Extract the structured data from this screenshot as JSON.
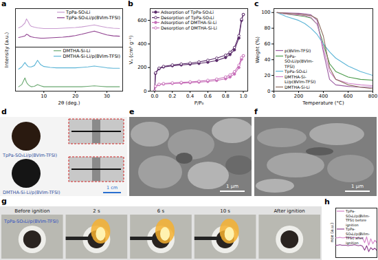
{
  "chart_data": [
    {
      "label": "a",
      "type": "line",
      "ylabel": "Intensity (a.u.)",
      "x": [
        2,
        3,
        4,
        4.5,
        5,
        5.5,
        6,
        7,
        8,
        9,
        10,
        12,
        14,
        16,
        18,
        20,
        22,
        24,
        26,
        28,
        30,
        32,
        34
      ],
      "xlim": [
        1,
        35
      ],
      "ylim": [
        0,
        12
      ],
      "tick_labels": false,
      "legend": "top-right",
      "series": [
        {
          "name": "TpPa-SO₃Li",
          "color": "#c99bd0",
          "values": [
            6,
            6.5,
            7.5,
            8.8,
            8,
            7,
            6.5,
            6.2,
            6,
            5.9,
            5.8,
            5.8,
            5.8,
            5.9,
            6,
            6.1,
            6.3,
            6.6,
            6.9,
            6.5,
            6.1,
            5.9,
            5.8
          ]
        },
        {
          "name": "TpPa-SO₃Li/p(BVIm-TFSI)",
          "color": "#8e3e8e",
          "values": [
            3,
            3.2,
            3.5,
            4,
            3.8,
            3.4,
            3.2,
            3,
            2.9,
            2.8,
            2.8,
            2.9,
            3,
            3.1,
            3.3,
            3.6,
            4,
            4.5,
            5,
            4.4,
            3.8,
            3.5,
            3.4
          ]
        }
      ]
    },
    {
      "type": "line",
      "xlabel": "2θ (deg.)",
      "x": [
        2,
        3,
        4,
        4.5,
        5,
        5.5,
        6,
        7,
        8,
        9,
        10,
        12,
        14,
        16,
        18,
        20,
        22,
        24,
        26,
        28,
        30,
        32,
        34
      ],
      "xlim": [
        1,
        35
      ],
      "xticks": [
        10,
        20,
        30
      ],
      "ylim": [
        0,
        10
      ],
      "tick_labels": "x",
      "legend": "top-right",
      "series": [
        {
          "name": "DMTHA-Si-Li",
          "color": "#6aa870",
          "values": [
            1,
            1.5,
            3,
            2,
            1.5,
            1.2,
            1,
            1.1,
            1.5,
            1.2,
            1,
            1,
            1,
            1,
            1,
            1,
            1,
            1.1,
            1.2,
            1.1,
            1,
            1,
            1
          ]
        },
        {
          "name": "DMTHA-Si-Li/p(BVIm-TFSI)",
          "color": "#5ab4d6",
          "values": [
            5,
            5.5,
            6.5,
            6,
            5.6,
            5.5,
            5.5,
            5.8,
            7,
            6,
            5.6,
            5.4,
            5.3,
            5.3,
            5.3,
            5.3,
            5.4,
            5.5,
            5.7,
            5.5,
            5.3,
            5.2,
            5.2
          ]
        }
      ]
    },
    {
      "label": "b",
      "type": "line",
      "xlabel": "P/P₀",
      "ylabel": "Vₐ (cm³ g⁻¹)",
      "x": [
        0,
        0.01,
        0.05,
        0.1,
        0.2,
        0.3,
        0.4,
        0.5,
        0.6,
        0.7,
        0.8,
        0.85,
        0.9,
        0.95,
        0.98,
        1.0
      ],
      "xlim": [
        -0.05,
        1.05
      ],
      "xticks": [
        {
          "value": 0,
          "label": "0.0"
        },
        {
          "value": 0.2,
          "label": "0.2"
        },
        {
          "value": 0.4,
          "label": "0.4"
        },
        {
          "value": 0.6,
          "label": "0.6"
        },
        {
          "value": 0.8,
          "label": "0.8"
        },
        {
          "value": 1,
          "label": "1.0"
        }
      ],
      "ylim": [
        0,
        700
      ],
      "yticks": [
        0,
        200,
        400,
        600
      ],
      "legend": "top-left",
      "series": [
        {
          "name": "Adsorption of TpPa-SO₃Li",
          "color": "#5a2a6a",
          "marker": "circle",
          "values": [
            0,
            150,
            190,
            205,
            215,
            222,
            228,
            235,
            245,
            260,
            285,
            310,
            350,
            450,
            600,
            650
          ]
        },
        {
          "name": "Desorption of TpPa-SO₃Li",
          "color": "#5a2a6a",
          "marker": "open_circle",
          "values": [
            0,
            155,
            195,
            210,
            222,
            230,
            238,
            248,
            262,
            280,
            305,
            330,
            370,
            470,
            610,
            650
          ]
        },
        {
          "name": "Adsorption of DMTHA-Si-Li",
          "color": "#c76fb9",
          "marker": "circle",
          "values": [
            0,
            40,
            55,
            60,
            65,
            68,
            72,
            76,
            82,
            90,
            105,
            120,
            145,
            200,
            270,
            300
          ]
        },
        {
          "name": "Desorption of DMTHA-Si-Li",
          "color": "#c76fb9",
          "marker": "open_circle",
          "values": [
            0,
            42,
            58,
            64,
            70,
            74,
            79,
            84,
            92,
            102,
            120,
            138,
            165,
            220,
            285,
            300
          ]
        }
      ]
    },
    {
      "label": "c",
      "type": "line",
      "xlabel": "Temperature (°C)",
      "ylabel": "Weight (%)",
      "x": [
        25,
        100,
        200,
        250,
        300,
        350,
        400,
        450,
        500,
        600,
        700,
        800
      ],
      "xlim": [
        0,
        800
      ],
      "xticks": [
        0,
        200,
        400,
        600,
        800
      ],
      "ylim": [
        0,
        105
      ],
      "yticks": [
        0,
        20,
        40,
        60,
        80,
        100
      ],
      "legend": "bottom-left",
      "series": [
        {
          "name": "p(BVIm-TFSI)",
          "color": "#9a5aa0",
          "values": [
            100,
            99.5,
            99,
            98.5,
            97,
            90,
            50,
            15,
            8,
            6,
            5,
            5
          ]
        },
        {
          "name": "TpPa-SO₃Li/p(BVIm-TFSI)",
          "color": "#4a9a4a",
          "values": [
            100,
            98,
            96,
            95,
            93,
            85,
            60,
            35,
            25,
            18,
            15,
            14
          ]
        },
        {
          "name": "TpPa-SO₃Li",
          "color": "#5ab4d6",
          "values": [
            100,
            95,
            90,
            86,
            80,
            72,
            60,
            50,
            42,
            32,
            25,
            20
          ]
        },
        {
          "name": "DMTHA-Si-Li/p(BVIm-TFSI)",
          "color": "#d080c8",
          "values": [
            100,
            98,
            97,
            96,
            94,
            85,
            55,
            25,
            15,
            10,
            8,
            7
          ]
        },
        {
          "name": "DMTHA-Si-Li",
          "color": "#8a6a5a",
          "values": [
            100,
            99,
            98,
            97,
            96,
            92,
            70,
            30,
            15,
            8,
            5,
            3
          ]
        }
      ]
    },
    {
      "label": "h",
      "type": "line",
      "ylabel": "nce (a.u.)",
      "x": [
        0,
        1,
        2,
        3,
        4,
        5,
        6,
        7,
        8,
        9,
        10,
        11,
        12,
        13,
        14,
        15,
        16,
        17,
        18,
        19,
        20
      ],
      "xlim": [
        0,
        20
      ],
      "ylim": [
        0,
        10
      ],
      "tick_labels": false,
      "legend": "top",
      "series": [
        {
          "name": "TpPa-SO₃Li/p(BVIm-TFSI) before ignition",
          "color": "#d47fc7",
          "values": [
            4,
            4,
            4.1,
            4,
            4,
            4.1,
            4,
            4,
            4,
            4.1,
            4,
            4,
            3.9,
            4,
            3,
            4.2,
            2.5,
            3.8,
            2.8,
            3.5,
            3
          ]
        },
        {
          "name": "TpPa-SO₃Li/p(BVIm-TFSI) after ignition",
          "color": "#8b3a8b",
          "values": [
            2.5,
            2.5,
            2.6,
            2.5,
            2.5,
            2.5,
            2.4,
            2.5,
            2.5,
            2.6,
            2.5,
            2.4,
            2.5,
            2.3,
            1.5,
            2.4,
            1.2,
            2,
            1.6,
            1.9,
            1.4
          ]
        }
      ]
    }
  ],
  "photos": {
    "d": {
      "label": "d",
      "captions": [
        "TpPa-SO₃Li/p(BVIm-TFSI)",
        "DMTHA-Si-Li/p(BVIm-TFSI)"
      ],
      "scale_bar": "1 cm"
    },
    "e": {
      "label": "e",
      "scale_bar": "1 μm"
    },
    "f": {
      "label": "f",
      "scale_bar": "1 μm"
    },
    "g": {
      "label": "g",
      "frames": [
        "Before ignition",
        "2 s",
        "6 s",
        "10 s",
        "After ignition"
      ],
      "caption": "TpPa-SO₃Li/p(BVIm-TFSI)"
    }
  }
}
